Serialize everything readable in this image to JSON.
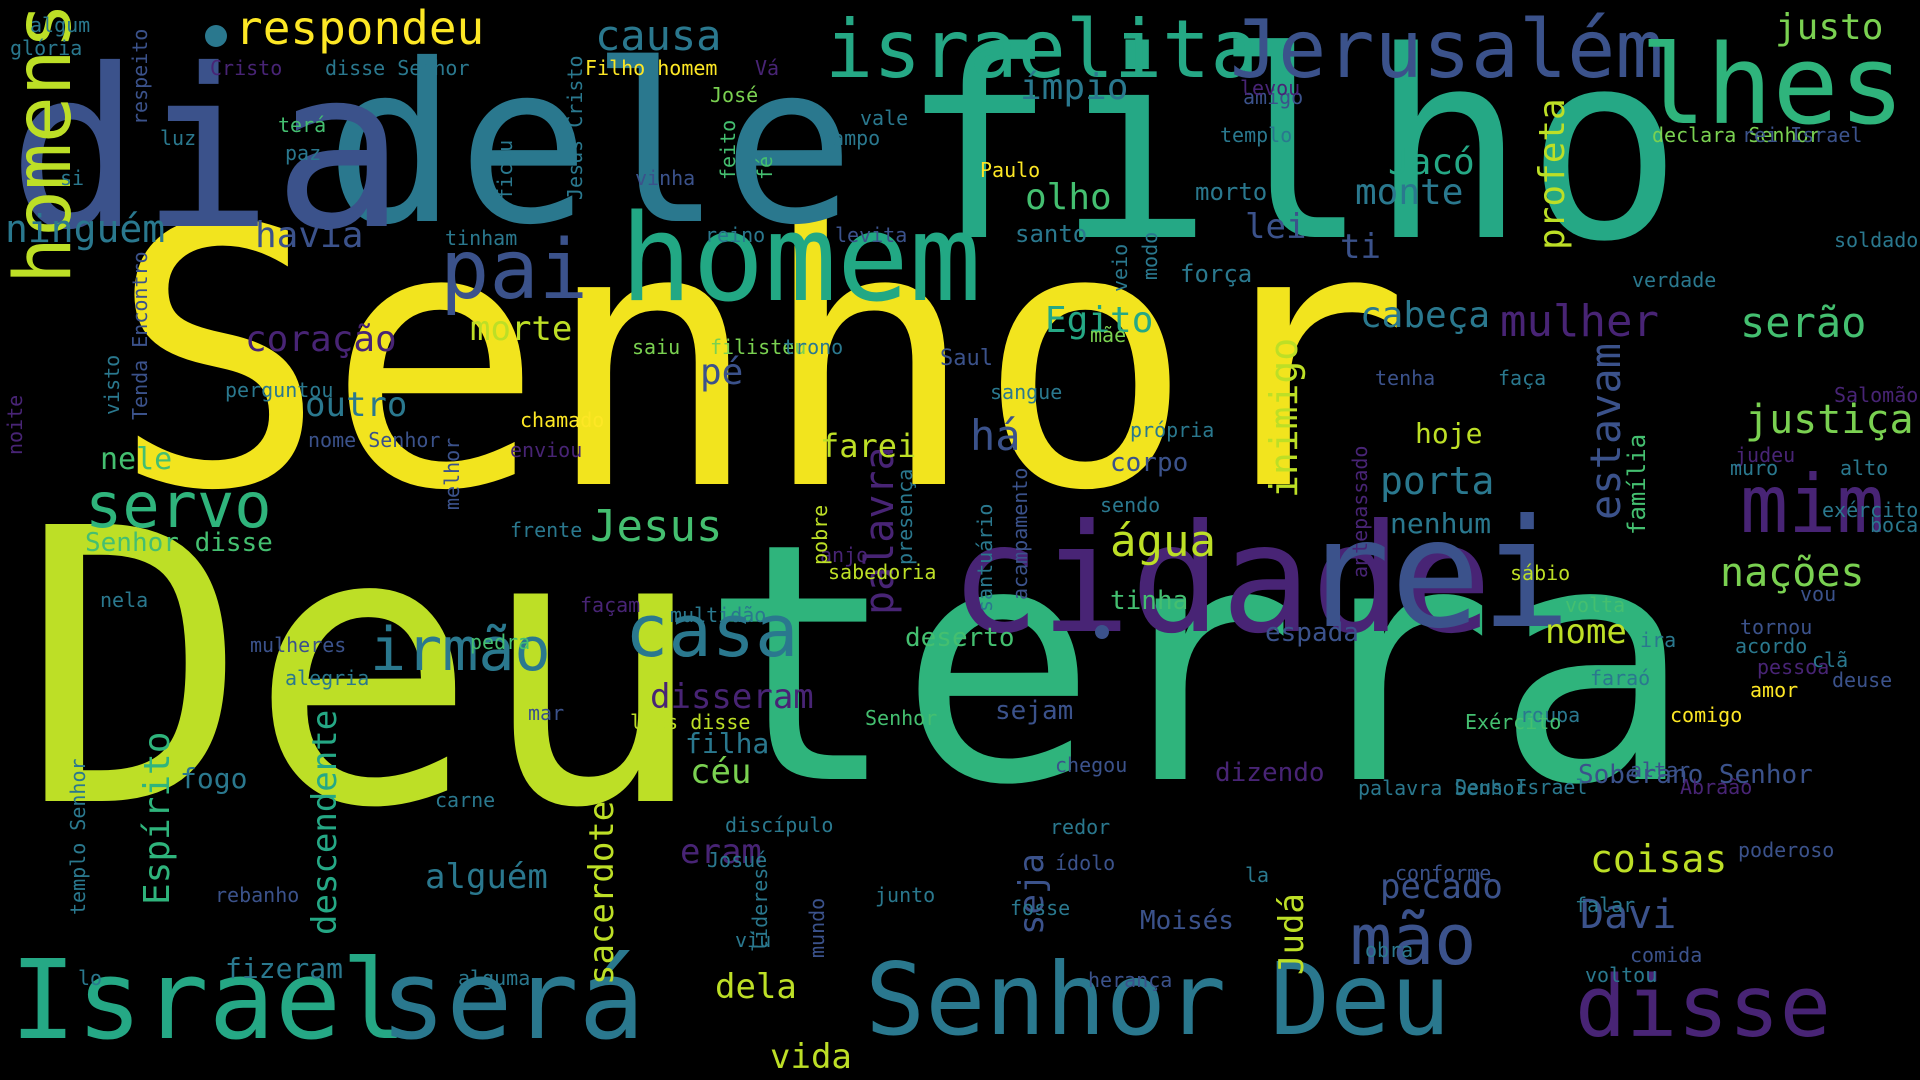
{
  "palette": {
    "background": "#000000",
    "colors": [
      "#fde725",
      "#bddf26",
      "#7ad151",
      "#44bf70",
      "#22a884",
      "#21918c",
      "#2a788e",
      "#355f8d",
      "#414487",
      "#482475",
      "#440154"
    ]
  },
  "words": [
    {
      "text": "Senhor",
      "color": "#f2e41e"
    },
    {
      "text": "Deu",
      "color": "#bddf26"
    },
    {
      "text": "terra",
      "color": "#2fb47c"
    },
    {
      "text": "filho",
      "color": "#25a885"
    },
    {
      "text": "dele",
      "color": "#2a788e"
    },
    {
      "text": "dia",
      "color": "#3b528b"
    },
    {
      "text": "cidade",
      "color": "#482475"
    },
    {
      "text": "rei",
      "color": "#3b528b"
    },
    {
      "text": "homem",
      "color": "#22a884"
    },
    {
      "text": "Israel",
      "color": "#25a885"
    },
    {
      "text": "será",
      "color": "#2a788e"
    },
    {
      "text": "Senhor",
      "color": "#2a788e"
    },
    {
      "text": "Deu",
      "color": "#2a788e"
    },
    {
      "text": "disse",
      "color": "#482475"
    },
    {
      "text": "israelita",
      "color": "#25a885"
    },
    {
      "text": "Jerusalém",
      "color": "#3b528b"
    },
    {
      "text": "lhes",
      "color": "#2fb47c"
    },
    {
      "text": "homens",
      "color": "#bddf26"
    },
    {
      "text": "pai",
      "color": "#3b528b"
    },
    {
      "text": "casa",
      "color": "#2a788e"
    },
    {
      "text": "irmão",
      "color": "#2a788e"
    },
    {
      "text": "servo",
      "color": "#2fb47c"
    },
    {
      "text": "mim",
      "color": "#482475"
    },
    {
      "text": "mão",
      "color": "#3b528b"
    },
    {
      "text": "respondeu",
      "color": "#fde725"
    },
    {
      "text": "causa",
      "color": "#2a788e"
    },
    {
      "text": "justo",
      "color": "#7ad151"
    },
    {
      "text": "ninguém",
      "color": "#2a788e"
    },
    {
      "text": "havia",
      "color": "#3b528b"
    },
    {
      "text": "coração",
      "color": "#482475"
    },
    {
      "text": "morte",
      "color": "#bddf26"
    },
    {
      "text": "outro",
      "color": "#2a788e"
    },
    {
      "text": "nele",
      "color": "#44bf70"
    },
    {
      "text": "Senhor disse",
      "color": "#44bf70"
    },
    {
      "text": "Jesus",
      "color": "#44bf70"
    },
    {
      "text": "palavra",
      "color": "#482475"
    },
    {
      "text": "há",
      "color": "#3b528b"
    },
    {
      "text": "farei",
      "color": "#bddf26"
    },
    {
      "text": "pé",
      "color": "#3b528b"
    },
    {
      "text": "Egito",
      "color": "#25a885"
    },
    {
      "text": "cabeça",
      "color": "#2a788e"
    },
    {
      "text": "mulher",
      "color": "#482475"
    },
    {
      "text": "serão",
      "color": "#44bf70"
    },
    {
      "text": "justiça",
      "color": "#7ad151"
    },
    {
      "text": "nações",
      "color": "#7ad151"
    },
    {
      "text": "estavam",
      "color": "#3b528b"
    },
    {
      "text": "porta",
      "color": "#2a788e"
    },
    {
      "text": "nenhum",
      "color": "#2a788e"
    },
    {
      "text": "água",
      "color": "#bddf26"
    },
    {
      "text": "inimigo",
      "color": "#bddf26"
    },
    {
      "text": "profeta",
      "color": "#bddf26"
    },
    {
      "text": "Jacó",
      "color": "#25a885"
    },
    {
      "text": "monte",
      "color": "#2a788e"
    },
    {
      "text": "olho",
      "color": "#44bf70"
    },
    {
      "text": "ímpio",
      "color": "#2a788e"
    },
    {
      "text": "lei",
      "color": "#3b528b"
    },
    {
      "text": "ti",
      "color": "#3b528b"
    },
    {
      "text": "Espírito",
      "color": "#2fb47c"
    },
    {
      "text": "descendente",
      "color": "#25a885"
    },
    {
      "text": "sacerdote",
      "color": "#bddf26"
    },
    {
      "text": "disseram",
      "color": "#482475"
    },
    {
      "text": "alguém",
      "color": "#2a788e"
    },
    {
      "text": "céu",
      "color": "#7ad151"
    },
    {
      "text": "eram",
      "color": "#482475"
    },
    {
      "text": "seja",
      "color": "#3b528b"
    },
    {
      "text": "Davi",
      "color": "#3b528b"
    },
    {
      "text": "coisas",
      "color": "#bddf26"
    },
    {
      "text": "pecado",
      "color": "#3b528b"
    },
    {
      "text": "nome",
      "color": "#bddf26"
    },
    {
      "text": "Judá",
      "color": "#bddf26"
    },
    {
      "text": "dela",
      "color": "#bddf26"
    },
    {
      "text": "vida",
      "color": "#bddf26"
    },
    {
      "text": "fizeram",
      "color": "#2a788e"
    },
    {
      "text": "Moisés",
      "color": "#3b528b"
    },
    {
      "text": "fogo",
      "color": "#2a788e"
    },
    {
      "text": "filha",
      "color": "#2a788e"
    },
    {
      "text": "sejam",
      "color": "#3b528b"
    },
    {
      "text": "dizendo",
      "color": "#482475"
    },
    {
      "text": "Soberano Senhor",
      "color": "#3b528b"
    },
    {
      "text": "corpo",
      "color": "#3b528b"
    },
    {
      "text": "tinha",
      "color": "#44bf70"
    },
    {
      "text": "espada",
      "color": "#3b528b"
    },
    {
      "text": "deserto",
      "color": "#44bf70"
    },
    {
      "text": "hoje",
      "color": "#bddf26"
    },
    {
      "text": "família",
      "color": "#44bf70"
    },
    {
      "text": "Saul",
      "color": "#3b528b"
    },
    {
      "text": "força",
      "color": "#2a788e"
    },
    {
      "text": "morto",
      "color": "#2a788e"
    },
    {
      "text": "santo",
      "color": "#2a788e"
    },
    {
      "text": "algum",
      "color": "#2a788e"
    },
    {
      "text": "glória",
      "color": "#2a788e"
    },
    {
      "text": "Cristo",
      "color": "#482475"
    },
    {
      "text": "disse Senhor",
      "color": "#2a788e"
    },
    {
      "text": "Filho homem",
      "color": "#fde725"
    },
    {
      "text": "Vá",
      "color": "#482475"
    },
    {
      "text": "José",
      "color": "#7ad151"
    },
    {
      "text": "vale",
      "color": "#2a788e"
    },
    {
      "text": "campo",
      "color": "#2a788e"
    },
    {
      "text": "respeito",
      "color": "#3b528b"
    },
    {
      "text": "luz",
      "color": "#2a788e"
    },
    {
      "text": "terá",
      "color": "#44bf70"
    },
    {
      "text": "paz",
      "color": "#2a788e"
    },
    {
      "text": "si",
      "color": "#2a788e"
    },
    {
      "text": "Jesus Cristo",
      "color": "#2a788e"
    },
    {
      "text": "ficou",
      "color": "#2a788e"
    },
    {
      "text": "feito",
      "color": "#44bf70"
    },
    {
      "text": "fé",
      "color": "#44bf70"
    },
    {
      "text": "vinha",
      "color": "#3b528b"
    },
    {
      "text": "Paulo",
      "color": "#fde725"
    },
    {
      "text": "reino",
      "color": "#2a788e"
    },
    {
      "text": "levita",
      "color": "#3b528b"
    },
    {
      "text": "tinham",
      "color": "#2a788e"
    },
    {
      "text": "amigo",
      "color": "#3b528b"
    },
    {
      "text": "levou",
      "color": "#482475"
    },
    {
      "text": "templo",
      "color": "#2a788e"
    },
    {
      "text": "declara Senhor",
      "color": "#7ad151"
    },
    {
      "text": "rei Israel",
      "color": "#3b528b"
    },
    {
      "text": "soldado",
      "color": "#2a788e"
    },
    {
      "text": "verdade",
      "color": "#2a788e"
    },
    {
      "text": "veio",
      "color": "#2a788e"
    },
    {
      "text": "modo",
      "color": "#2a788e"
    },
    {
      "text": "mãe",
      "color": "#7ad151"
    },
    {
      "text": "saiu",
      "color": "#7ad151"
    },
    {
      "text": "filisteu",
      "color": "#7ad151"
    },
    {
      "text": "trono",
      "color": "#2a788e"
    },
    {
      "text": "noite",
      "color": "#482475"
    },
    {
      "text": "visto",
      "color": "#2a788e"
    },
    {
      "text": "Tenda Encontro",
      "color": "#3b528b"
    },
    {
      "text": "perguntou",
      "color": "#2a788e"
    },
    {
      "text": "nome Senhor",
      "color": "#3b528b"
    },
    {
      "text": "chamado",
      "color": "#fde725"
    },
    {
      "text": "enviou",
      "color": "#482475"
    },
    {
      "text": "sangue",
      "color": "#2a788e"
    },
    {
      "text": "própria",
      "color": "#2a788e"
    },
    {
      "text": "tenha",
      "color": "#3b528b"
    },
    {
      "text": "faça",
      "color": "#2a788e"
    },
    {
      "text": "Salomão",
      "color": "#482475"
    },
    {
      "text": "judeu",
      "color": "#482475"
    },
    {
      "text": "alto",
      "color": "#2a788e"
    },
    {
      "text": "muro",
      "color": "#2a788e"
    },
    {
      "text": "sendo",
      "color": "#2a788e"
    },
    {
      "text": "melhor",
      "color": "#3b528b"
    },
    {
      "text": "frente",
      "color": "#2a788e"
    },
    {
      "text": "exército",
      "color": "#2a788e"
    },
    {
      "text": "anjo",
      "color": "#482475"
    },
    {
      "text": "sabedoria",
      "color": "#bddf26"
    },
    {
      "text": "pobre",
      "color": "#bddf26"
    },
    {
      "text": "presença",
      "color": "#2a788e"
    },
    {
      "text": "santuário",
      "color": "#2a788e"
    },
    {
      "text": "acampamento",
      "color": "#3b528b"
    },
    {
      "text": "antepassado",
      "color": "#482475"
    },
    {
      "text": "sábio",
      "color": "#bddf26"
    },
    {
      "text": "vou",
      "color": "#3b528b"
    },
    {
      "text": "façam",
      "color": "#482475"
    },
    {
      "text": "volta",
      "color": "#44bf70"
    },
    {
      "text": "tornou",
      "color": "#3b528b"
    },
    {
      "text": "boca",
      "color": "#2a788e"
    },
    {
      "text": "amor",
      "color": "#fde725"
    },
    {
      "text": "acordo",
      "color": "#2a788e"
    },
    {
      "text": "pessoa",
      "color": "#482475"
    },
    {
      "text": "clã",
      "color": "#2a788e"
    },
    {
      "text": "deuse",
      "color": "#3b528b"
    },
    {
      "text": "nela",
      "color": "#2a788e"
    },
    {
      "text": "multidão",
      "color": "#2a788e"
    },
    {
      "text": "pedra",
      "color": "#44bf70"
    },
    {
      "text": "mulheres",
      "color": "#3b528b"
    },
    {
      "text": "ira",
      "color": "#2a788e"
    },
    {
      "text": "alegria",
      "color": "#2a788e"
    },
    {
      "text": "mar",
      "color": "#3b528b"
    },
    {
      "text": "roupa",
      "color": "#2a788e"
    },
    {
      "text": "lhes disse",
      "color": "#bddf26"
    },
    {
      "text": "Exército",
      "color": "#44bf70"
    },
    {
      "text": "Senhor",
      "color": "#44bf70"
    },
    {
      "text": "comigo",
      "color": "#fde725"
    },
    {
      "text": "templo Senhor",
      "color": "#2a788e"
    },
    {
      "text": "carne",
      "color": "#2a788e"
    },
    {
      "text": "discípulo",
      "color": "#2a788e"
    },
    {
      "text": "chegou",
      "color": "#3b528b"
    },
    {
      "text": "redor",
      "color": "#2a788e"
    },
    {
      "text": "faraó",
      "color": "#2a788e"
    },
    {
      "text": "altar",
      "color": "#3b528b"
    },
    {
      "text": "Deus Israel",
      "color": "#2a788e"
    },
    {
      "text": "Abraão",
      "color": "#482475"
    },
    {
      "text": "palavra Senhor",
      "color": "#2a788e"
    },
    {
      "text": "poderoso",
      "color": "#3b528b"
    },
    {
      "text": "ídolo",
      "color": "#3b528b"
    },
    {
      "text": "conforme",
      "color": "#3b528b"
    },
    {
      "text": "junto",
      "color": "#2a788e"
    },
    {
      "text": "rebanho",
      "color": "#3b528b"
    },
    {
      "text": "falar",
      "color": "#2a788e"
    },
    {
      "text": "fosse",
      "color": "#2a788e"
    },
    {
      "text": "viu",
      "color": "#2a788e"
    },
    {
      "text": "líderes",
      "color": "#2a788e"
    },
    {
      "text": "mundo",
      "color": "#3b528b"
    },
    {
      "text": "Josué",
      "color": "#2a788e"
    },
    {
      "text": "la",
      "color": "#2a788e"
    },
    {
      "text": "herança",
      "color": "#3b528b"
    },
    {
      "text": "comida",
      "color": "#3b528b"
    },
    {
      "text": "voltou",
      "color": "#2a788e"
    },
    {
      "text": "obra",
      "color": "#2a788e"
    },
    {
      "text": "lo",
      "color": "#2a788e"
    },
    {
      "text": "alguma",
      "color": "#2a788e"
    }
  ]
}
